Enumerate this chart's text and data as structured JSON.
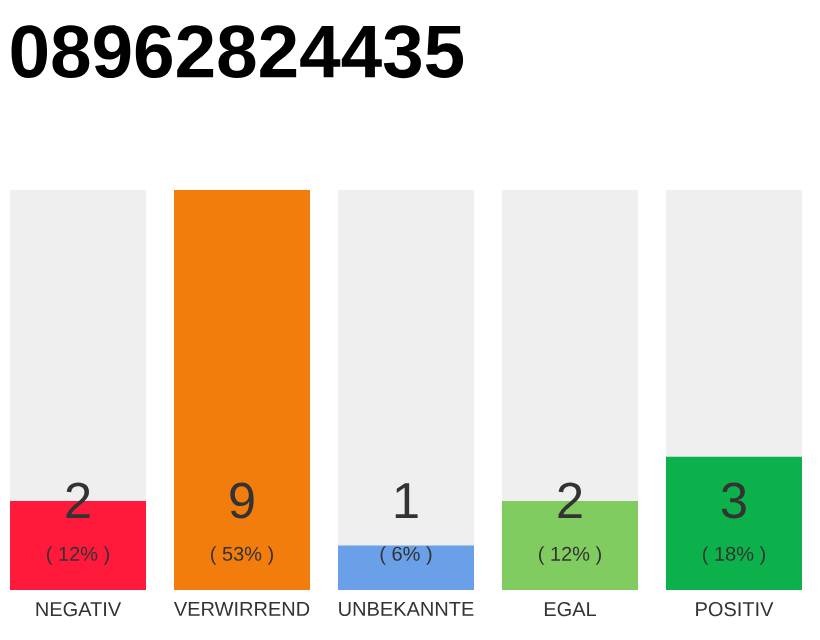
{
  "chart_data": {
    "type": "bar",
    "title": "08962824435",
    "categories": [
      "NEGATIV",
      "VERWIRREND",
      "UNBEKANNTE",
      "EGAL",
      "POSITIV"
    ],
    "values": [
      2,
      9,
      1,
      2,
      3
    ],
    "colors": [
      "#ff1a3c",
      "#f27d0c",
      "#6aa0e8",
      "#80cc60",
      "#0db14b"
    ],
    "value_labels": [
      "2",
      "9",
      "1",
      "2",
      "3"
    ],
    "annotations": [
      "( 12% )",
      "( 53% )",
      "( 6% )",
      "( 12% )",
      "( 18% )"
    ]
  }
}
